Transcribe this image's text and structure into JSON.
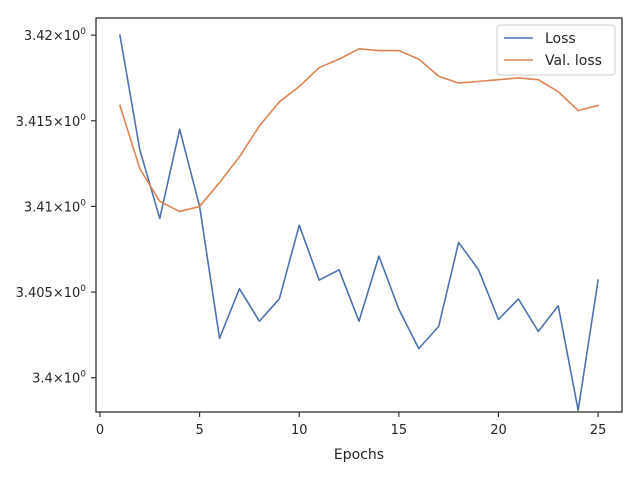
{
  "chart_data": {
    "type": "line",
    "title": "",
    "xlabel": "Epochs",
    "ylabel": "",
    "xlim": [
      -0.2,
      26.2
    ],
    "ylim": [
      3.398,
      3.421
    ],
    "x_ticks": [
      0,
      5,
      10,
      15,
      20,
      25
    ],
    "y_ticks": [
      {
        "value": 3.4,
        "mantissa": "3.4",
        "exp": "0"
      },
      {
        "value": 3.405,
        "mantissa": "3.405",
        "exp": "0"
      },
      {
        "value": 3.41,
        "mantissa": "3.41",
        "exp": "0"
      },
      {
        "value": 3.415,
        "mantissa": "3.415",
        "exp": "0"
      },
      {
        "value": 3.42,
        "mantissa": "3.42",
        "exp": "0"
      }
    ],
    "x": [
      1,
      2,
      3,
      4,
      5,
      6,
      7,
      8,
      9,
      10,
      11,
      12,
      13,
      14,
      15,
      16,
      17,
      18,
      19,
      20,
      21,
      22,
      23,
      24,
      25
    ],
    "series": [
      {
        "name": "Loss",
        "color": "#4c72b0",
        "values": [
          3.42,
          3.4133,
          3.4093,
          3.4145,
          3.41,
          3.4023,
          3.4052,
          3.4033,
          3.4046,
          3.4089,
          3.4057,
          3.4063,
          3.4033,
          3.4071,
          3.404,
          3.4017,
          3.403,
          3.4079,
          3.4063,
          3.4034,
          3.4046,
          3.4027,
          3.4042,
          3.3981,
          3.4057
        ]
      },
      {
        "name": "Val. loss",
        "color": "#dd8452",
        "values": [
          3.4159,
          3.4122,
          3.4103,
          3.4097,
          3.41,
          3.4114,
          3.4129,
          3.4147,
          3.4161,
          3.417,
          3.4181,
          3.4186,
          3.4192,
          3.4191,
          3.4191,
          3.4186,
          3.4176,
          3.4172,
          3.4173,
          3.4174,
          3.4175,
          3.4174,
          3.4167,
          3.4156,
          3.4159
        ]
      }
    ],
    "grid": false,
    "legend": "top-right"
  }
}
